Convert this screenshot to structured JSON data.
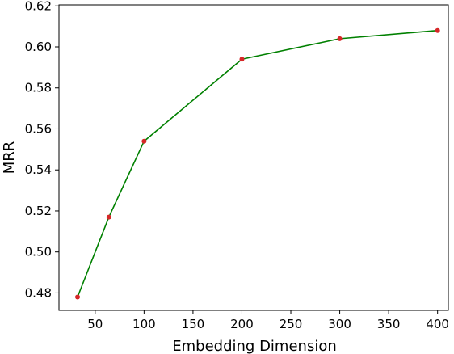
{
  "chart_data": {
    "type": "line",
    "title": "",
    "xlabel": "Embedding Dimension",
    "ylabel": "MRR",
    "xlim": [
      13,
      411
    ],
    "ylim": [
      0.4715,
      0.6205
    ],
    "xticks": [
      50,
      100,
      150,
      200,
      250,
      300,
      350,
      400
    ],
    "yticks": [
      0.48,
      0.5,
      0.52,
      0.54,
      0.56,
      0.58,
      0.6,
      0.62
    ],
    "xtick_labels": [
      "50",
      "100",
      "150",
      "200",
      "250",
      "300",
      "350",
      "400"
    ],
    "ytick_labels": [
      "0.48",
      "0.50",
      "0.52",
      "0.54",
      "0.56",
      "0.58",
      "0.60",
      "0.62"
    ],
    "grid": false,
    "legend": "none",
    "series": [
      {
        "x": [
          32,
          64,
          100,
          200,
          300,
          400
        ],
        "y": [
          0.478,
          0.517,
          0.554,
          0.594,
          0.604,
          0.608
        ],
        "line_color": "#008000",
        "marker_color": "#d62728"
      }
    ]
  }
}
